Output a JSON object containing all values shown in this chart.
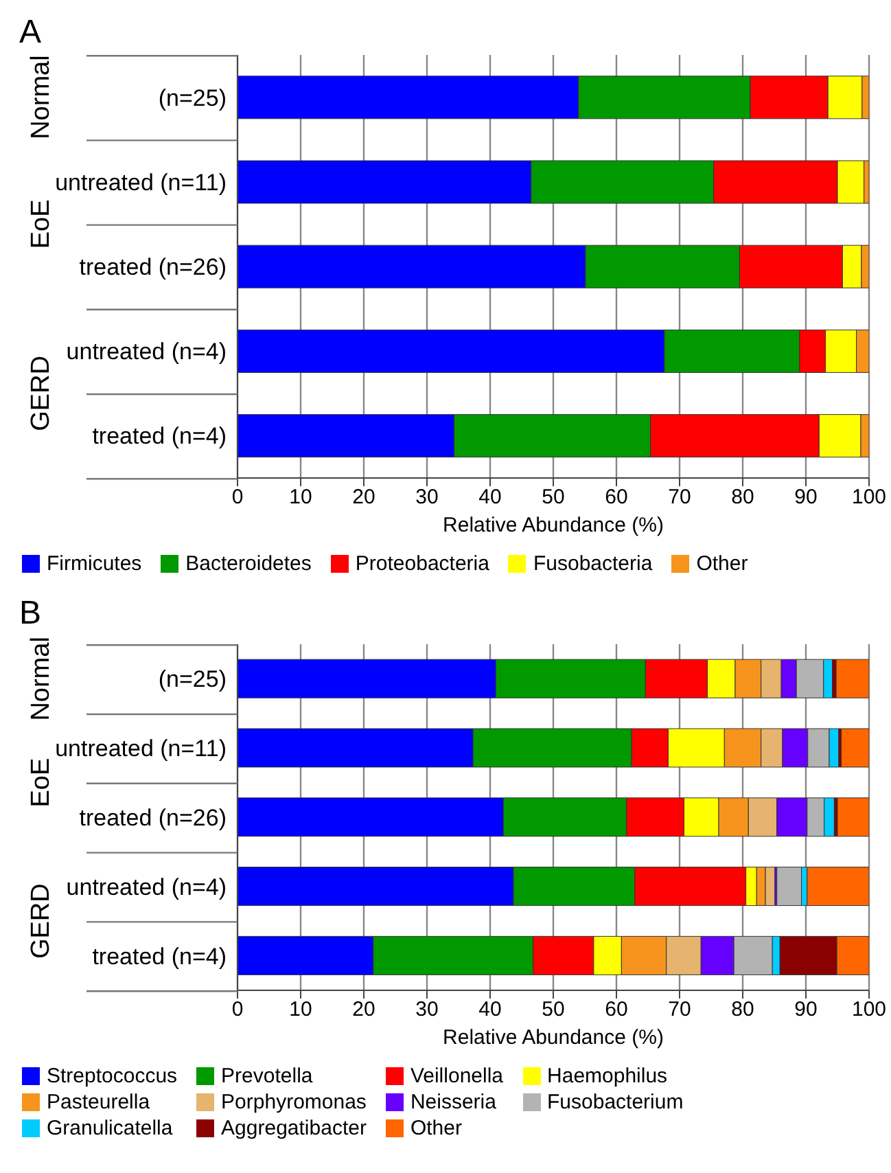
{
  "chart_data": [
    {
      "type": "bar",
      "orientation": "horizontal",
      "stacked": true,
      "title": "A",
      "xlabel": "Relative Abundance (%)",
      "categories": [
        "(n=25)",
        "untreated (n=11)",
        "treated (n=26)",
        "untreated (n=4)",
        "treated (n=4)"
      ],
      "annotations": [
        "Normal",
        "EoE",
        "GERD"
      ],
      "xlim": [
        0,
        100
      ],
      "xticks": [
        0,
        10,
        20,
        30,
        40,
        50,
        60,
        70,
        80,
        90,
        100
      ],
      "grid": "x",
      "legend": "bottom",
      "series": [
        {
          "name": "Firmicutes",
          "color": "#0000ff",
          "values": [
            54.0,
            46.5,
            55.1,
            67.6,
            34.3
          ]
        },
        {
          "name": "Bacteroidetes",
          "color": "#009900",
          "values": [
            27.2,
            28.9,
            24.4,
            21.4,
            31.1
          ]
        },
        {
          "name": "Proteobacteria",
          "color": "#ff0000",
          "values": [
            12.3,
            19.6,
            16.3,
            4.1,
            26.7
          ]
        },
        {
          "name": "Fusobacteria",
          "color": "#ffff00",
          "values": [
            5.4,
            4.2,
            3.0,
            4.9,
            6.6
          ]
        },
        {
          "name": "Other",
          "color": "#f7941d",
          "values": [
            1.1,
            0.8,
            1.2,
            2.0,
            1.3
          ]
        }
      ]
    },
    {
      "type": "bar",
      "orientation": "horizontal",
      "stacked": true,
      "title": "B",
      "xlabel": "Relative Abundance (%)",
      "categories": [
        "(n=25)",
        "untreated (n=11)",
        "treated (n=26)",
        "untreated (n=4)",
        "treated (n=4)"
      ],
      "annotations": [
        "Normal",
        "EoE",
        "GERD"
      ],
      "xlim": [
        0,
        100
      ],
      "xticks": [
        0,
        10,
        20,
        30,
        40,
        50,
        60,
        70,
        80,
        90,
        100
      ],
      "grid": "x",
      "legend": "bottom",
      "series": [
        {
          "name": "Streptococcus",
          "color": "#0000ff",
          "values": [
            40.9,
            37.3,
            42.1,
            43.7,
            21.5
          ]
        },
        {
          "name": "Prevotella",
          "color": "#009900",
          "values": [
            23.7,
            25.1,
            19.5,
            19.2,
            25.3
          ]
        },
        {
          "name": "Veillonella",
          "color": "#ff0000",
          "values": [
            9.8,
            5.8,
            9.1,
            17.6,
            9.6
          ]
        },
        {
          "name": "Haemophilus",
          "color": "#ffff00",
          "values": [
            4.4,
            8.9,
            5.5,
            1.7,
            4.4
          ]
        },
        {
          "name": "Pasteurella",
          "color": "#f7941d",
          "values": [
            4.1,
            5.8,
            4.7,
            1.4,
            7.1
          ]
        },
        {
          "name": "Porphyromonas",
          "color": "#e6b46e",
          "values": [
            3.2,
            3.4,
            4.5,
            1.5,
            5.5
          ]
        },
        {
          "name": "Neisseria",
          "color": "#6600ff",
          "values": [
            2.4,
            4.0,
            4.8,
            0.3,
            5.2
          ]
        },
        {
          "name": "Fusobacterium",
          "color": "#b3b3b3",
          "values": [
            4.3,
            3.4,
            2.7,
            3.9,
            6.1
          ]
        },
        {
          "name": "Granulicatella",
          "color": "#00ccff",
          "values": [
            1.4,
            1.5,
            1.6,
            0.9,
            1.2
          ]
        },
        {
          "name": "Aggregatibacter",
          "color": "#8b0000",
          "values": [
            0.6,
            0.4,
            0.5,
            0,
            9.0
          ]
        },
        {
          "name": "Other",
          "color": "#ff6600",
          "values": [
            5.2,
            4.4,
            5.0,
            9.8,
            5.1
          ]
        }
      ]
    }
  ]
}
